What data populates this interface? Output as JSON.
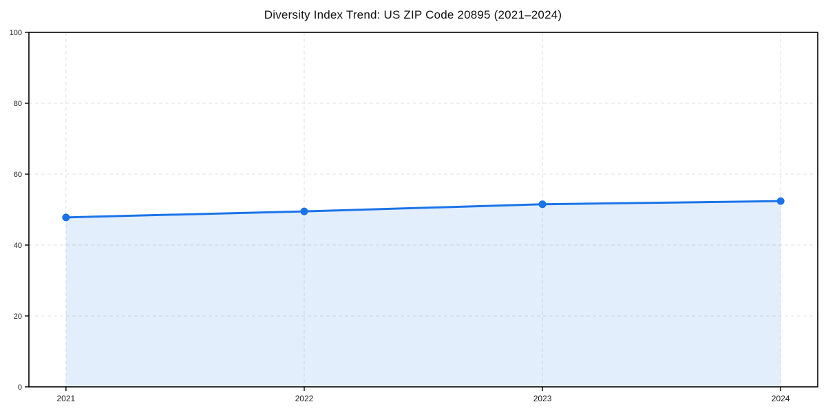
{
  "title": "Diversity Index Trend: US ZIP Code 20895 (2021–2024)",
  "colors": {
    "line": "#1a73e8",
    "marker": "#1a73e8",
    "area_fill": "rgba(26,115,232,0.12)",
    "grid": "#e0e0e0",
    "spine": "#000000",
    "tick_text": "#1a1a1a",
    "background": "#ffffff"
  },
  "chart_data": {
    "type": "area",
    "title": "Diversity Index Trend: US ZIP Code 20895 (2021–2024)",
    "categories": [
      "2021",
      "2022",
      "2023",
      "2024"
    ],
    "series": [
      {
        "name": "Diversity Index",
        "values": [
          47.8,
          49.5,
          51.5,
          52.4
        ]
      }
    ],
    "xlabel": "",
    "ylabel": "",
    "ylim": [
      0,
      100
    ],
    "yticks": [
      0,
      20,
      40,
      60,
      80,
      100
    ],
    "grid": "dashed",
    "legend": "none",
    "markers": true
  }
}
